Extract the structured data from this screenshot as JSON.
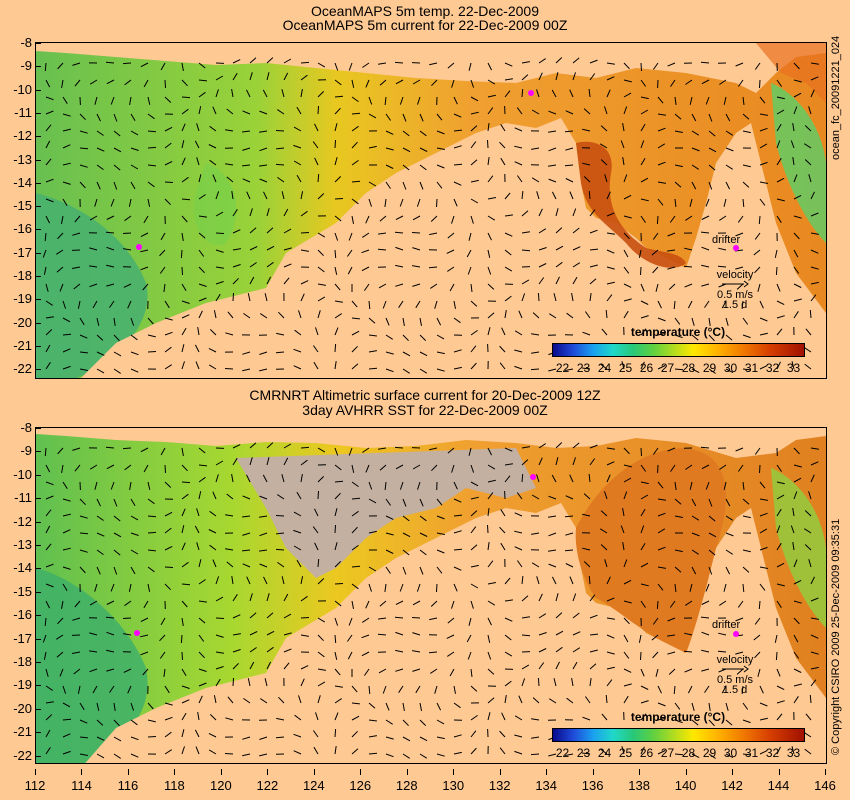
{
  "top": {
    "title_line1": "OceanMAPS 5m temp. 22-Dec-2009",
    "title_line2": "OceanMAPS 5m current for 22-Dec-2009 00Z",
    "side_label": "ocean_fc_20091221_024",
    "legend_title": "temperature (°C)",
    "drifter_label": "drifter",
    "velocity_label": "velocity",
    "velocity_scale": "0.5 m/s",
    "velocity_days": "1.5 d"
  },
  "bottom": {
    "title_line1": "CMRNRT Altimetric surface current for 20-Dec-2009 12Z",
    "title_line2": "3day AVHRR SST for 22-Dec-2009 00Z",
    "side_label": "© Copyright CSIRO 2009   25-Dec-2009 09:35:31",
    "legend_title": "temperature (°C)",
    "drifter_label": "drifter",
    "velocity_label": "velocity",
    "velocity_scale": "0.5 m/s",
    "velocity_days": "1.5 d"
  },
  "colorbar_ticks": [
    "22",
    "23",
    "24",
    "25",
    "26",
    "27",
    "28",
    "29",
    "30",
    "31",
    "32",
    "33"
  ],
  "y_axis_labels": [
    "-8",
    "-9",
    "-10",
    "-11",
    "-12",
    "-13",
    "-14",
    "-15",
    "-16",
    "-17",
    "-18",
    "-19",
    "-20",
    "-21",
    "-22"
  ],
  "x_axis_labels": [
    "112",
    "114",
    "116",
    "118",
    "120",
    "122",
    "124",
    "126",
    "128",
    "130",
    "132",
    "134",
    "136",
    "138",
    "140",
    "142",
    "144",
    "146"
  ],
  "colors": {
    "land": "#ffc993",
    "warm_sea": "#f0a030",
    "cool_sea": "#7ed040",
    "cloud_gap": "#c4b0a0",
    "drifter": "#ff00ff"
  }
}
